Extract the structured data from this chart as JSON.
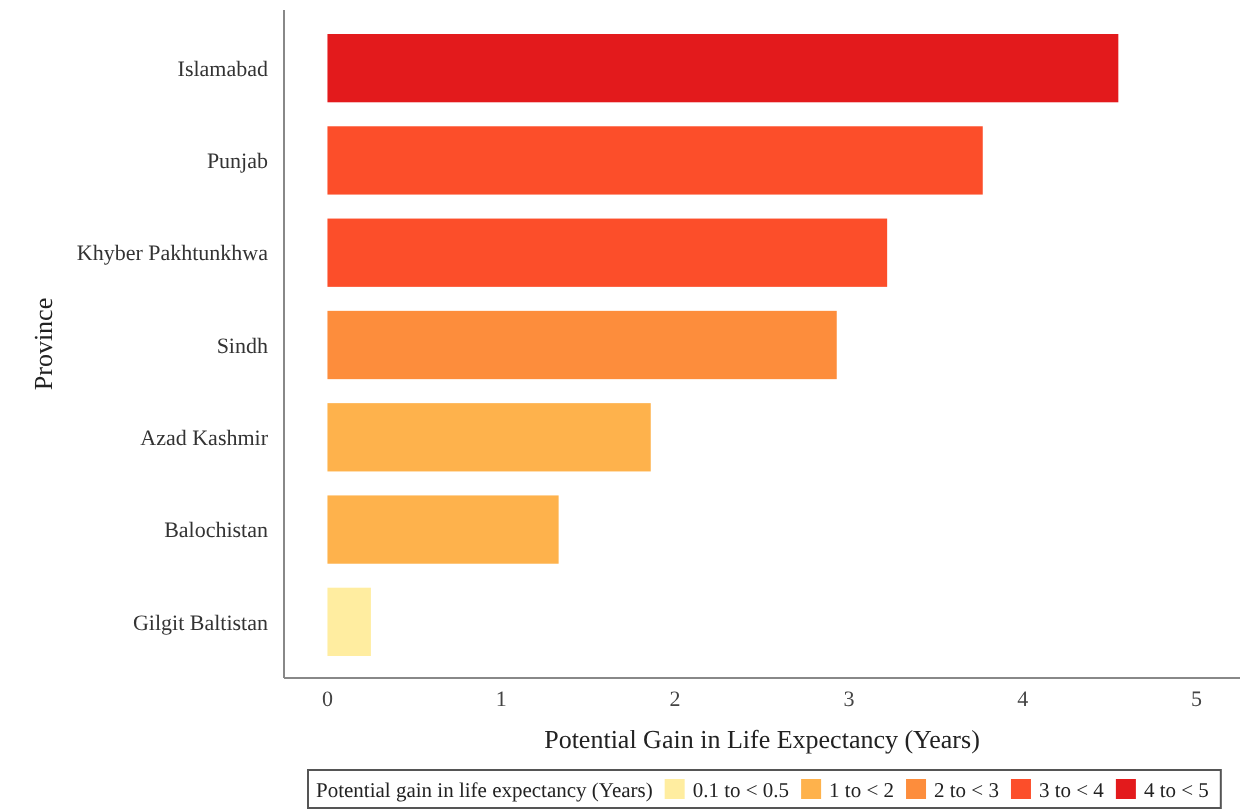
{
  "chart_data": {
    "type": "bar",
    "orientation": "horizontal",
    "stacked": true,
    "xlabel": "Potential Gain in Life Expectancy  (Years)",
    "ylabel": "Province",
    "legend_title": "Potential gain in life expectancy (Years)",
    "categories": [
      "Islamabad",
      "Punjab",
      "Khyber Pakhtunkhwa",
      "Sindh",
      "Azad Kashmir",
      "Balochistan",
      "Gilgit Baltistan"
    ],
    "series": [
      {
        "name": "0.1 to < 0.5",
        "color": "#ffeda0",
        "values": [
          null,
          null,
          null,
          null,
          null,
          null,
          0.25
        ]
      },
      {
        "name": "1 to < 2",
        "color": "#feb24c",
        "values": [
          null,
          null,
          null,
          null,
          1.86,
          1.33,
          null
        ]
      },
      {
        "name": "2 to < 3",
        "color": "#fd8d3c",
        "values": [
          null,
          null,
          null,
          2.93,
          null,
          null,
          null
        ]
      },
      {
        "name": "3 to < 4",
        "color": "#fc4e2a",
        "values": [
          null,
          3.77,
          3.22,
          null,
          null,
          null,
          null
        ]
      },
      {
        "name": "4 to < 5",
        "color": "#e31a1c",
        "values": [
          4.55,
          null,
          null,
          null,
          null,
          null,
          null
        ]
      }
    ],
    "xlim": [
      -0.25,
      5.25
    ],
    "xticks": [
      0,
      1,
      2,
      3,
      4,
      5
    ],
    "grid": false,
    "legend": "bottom"
  }
}
